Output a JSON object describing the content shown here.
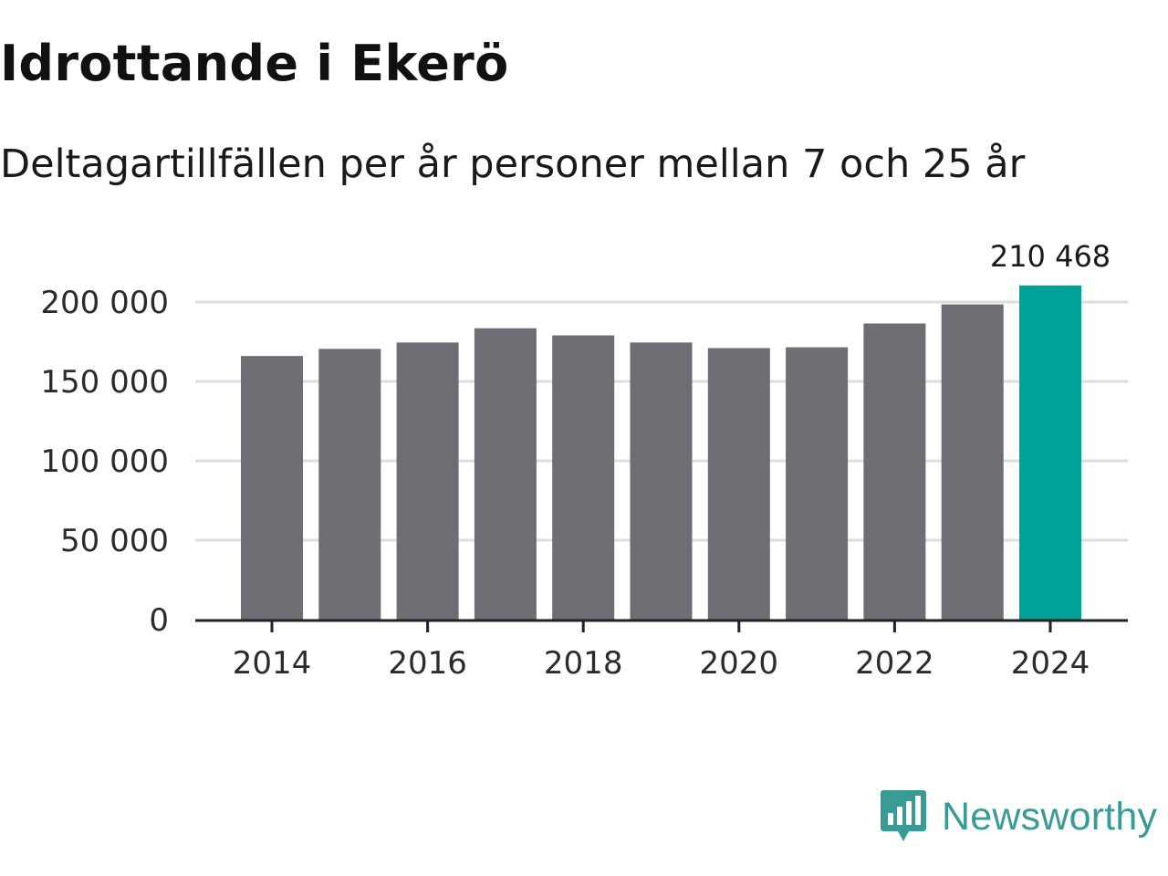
{
  "header": {
    "title": "Idrottande i Ekerö",
    "subtitle": "Deltagartillfällen per år personer mellan 7 och 25 år"
  },
  "colors": {
    "bar": "#6e6d73",
    "highlight": "#00a398",
    "grid": "#dddddd",
    "axis": "#222222",
    "brand": "#3a9a96"
  },
  "chart_data": {
    "type": "bar",
    "title": "Idrottande i Ekerö",
    "subtitle": "Deltagartillfällen per år personer mellan 7 och 25 år",
    "xlabel": "",
    "ylabel": "",
    "categories": [
      "2014",
      "2015",
      "2016",
      "2017",
      "2018",
      "2019",
      "2020",
      "2021",
      "2022",
      "2023",
      "2024"
    ],
    "values": [
      166000,
      170500,
      174500,
      183500,
      179000,
      174500,
      171000,
      171500,
      186500,
      198500,
      210468
    ],
    "highlight_index": 10,
    "highlight_label": "210 468",
    "x_ticks": [
      "2014",
      "2016",
      "2018",
      "2020",
      "2022",
      "2024"
    ],
    "y_ticks": [
      0,
      50000,
      100000,
      150000,
      200000
    ],
    "y_tick_labels": [
      "0",
      "50 000",
      "100 000",
      "150 000",
      "200 000"
    ],
    "ylim": [
      0,
      200000
    ],
    "grid": true,
    "legend": "none"
  },
  "footer": {
    "brand_name": "Newsworthy",
    "brand_icon": "newsworthy-logo-icon"
  }
}
